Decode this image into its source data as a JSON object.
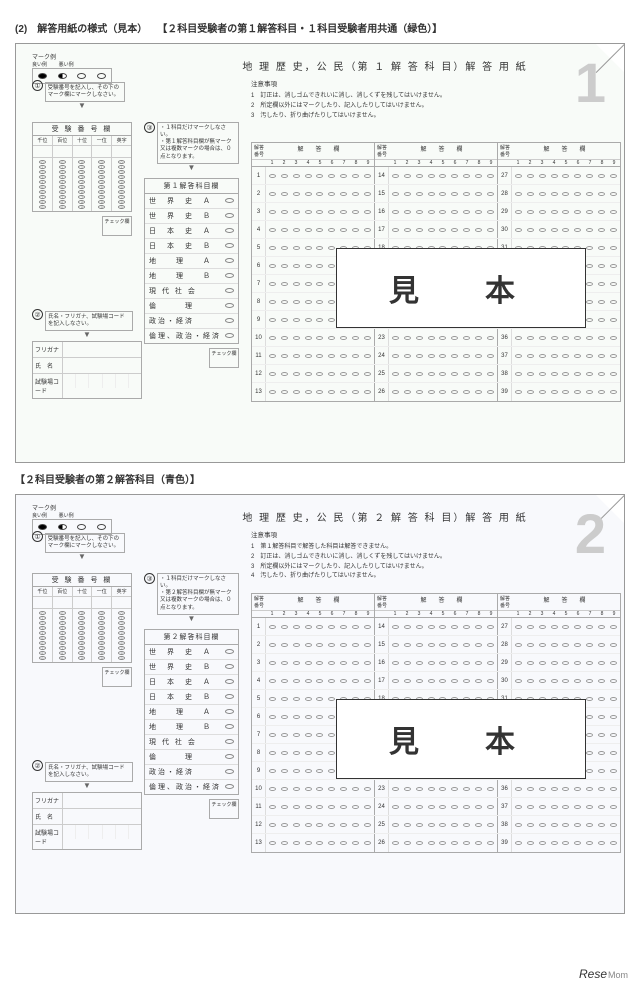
{
  "page_header": "(2)　解答用紙の様式（見本）　　【２科目受験者の第１解答科目・１科目受験者用共通（緑色）】",
  "section2_header": "【２科目受験者の第２解答科目（青色）】",
  "footer_brand": "Rese",
  "footer_suffix": "Mom",
  "sheet1": {
    "corner": "1",
    "title": "地 理 歴 史，公 民（第 １ 解 答 科 目）解 答 用 紙",
    "mark_example_label": "マーク例",
    "mark_good": "良い例",
    "mark_bad": "悪い例",
    "instr_label": "①",
    "instr_text": "受験番号を記入し、その下のマーク欄にマークしなさい。",
    "exnum_header": "受 験 番 号 欄",
    "exnum_cols": [
      "千位",
      "百位",
      "十位",
      "一位",
      "英字"
    ],
    "name_label": "②",
    "name_text": "氏名・フリガナ、試験場コードを記入しなさい。",
    "name_rows": [
      "フリガナ",
      "氏　名",
      "試験場コード"
    ],
    "subj_label": "③",
    "subj_note": "・１科目だけマークしなさい。\n・第１解答科目欄が無マーク又は複数マークの場合は、０点となります。",
    "subj_header": "第１解答科目欄",
    "subjects": [
      "世　界　史　Ａ",
      "世　界　史　Ｂ",
      "日　本　史　Ａ",
      "日　本　史　Ｂ",
      "地　　理　　Ａ",
      "地　　理　　Ｂ",
      "現 代 社 会",
      "倫　　　理",
      "政治・経済",
      "倫理、政治・経済"
    ],
    "check_label": "チェック欄",
    "notes_header": "注意事項",
    "notes": [
      "1　訂正は、消しゴムできれいに消し、消しくずを残してはいけません。",
      "2　所定欄以外にはマークしたり、記入したりしてはいけません。",
      "3　汚したり、折り曲げたりしてはいけません。"
    ],
    "ans_col_header": "解　答　欄",
    "ans_num_header": "解答番号",
    "ans_digits": [
      "1",
      "2",
      "3",
      "4",
      "5",
      "6",
      "7",
      "8",
      "9"
    ],
    "ans_rows": 13,
    "ans_start": [
      1,
      14,
      27
    ],
    "sample_text": "見　本"
  },
  "sheet2": {
    "corner": "2",
    "title": "地 理 歴 史，公 民（第 ２ 解 答 科 目）解 答 用 紙",
    "mark_example_label": "マーク例",
    "mark_good": "良い例",
    "mark_bad": "悪い例",
    "instr_label": "①",
    "instr_text": "受験番号を記入し、その下のマーク欄にマークしなさい。",
    "exnum_header": "受 験 番 号 欄",
    "exnum_cols": [
      "千位",
      "百位",
      "十位",
      "一位",
      "英字"
    ],
    "name_label": "②",
    "name_text": "氏名・フリガナ、試験場コードを記入しなさい。",
    "name_rows": [
      "フリガナ",
      "氏　名",
      "試験場コード"
    ],
    "subj_label": "③",
    "subj_note": "・１科目だけマークしなさい。\n・第２解答科目欄が無マーク又は複数マークの場合は、０点となります。",
    "subj_header": "第２解答科目欄",
    "subjects": [
      "世　界　史　Ａ",
      "世　界　史　Ｂ",
      "日　本　史　Ａ",
      "日　本　史　Ｂ",
      "地　　理　　Ａ",
      "地　　理　　Ｂ",
      "現 代 社 会",
      "倫　　　理",
      "政治・経済",
      "倫理、政治・経済"
    ],
    "check_label": "チェック欄",
    "notes_header": "注意事項",
    "notes": [
      "1　第１解答科目で解答した科目は解答できません。",
      "2　訂正は、消しゴムできれいに消し、消しくずを残してはいけません。",
      "3　所定欄以外にはマークしたり、記入したりしてはいけません。",
      "4　汚したり、折り曲げたりしてはいけません。"
    ],
    "ans_col_header": "解　答　欄",
    "ans_num_header": "解答番号",
    "ans_digits": [
      "1",
      "2",
      "3",
      "4",
      "5",
      "6",
      "7",
      "8",
      "9"
    ],
    "ans_rows": 13,
    "ans_start": [
      1,
      14,
      27
    ],
    "sample_text": "見　本"
  },
  "colors": {
    "green_tint": "#f4faf4",
    "blue_tint": "#f5f7fc",
    "border": "#999",
    "light": "#ccc",
    "text": "#333"
  }
}
